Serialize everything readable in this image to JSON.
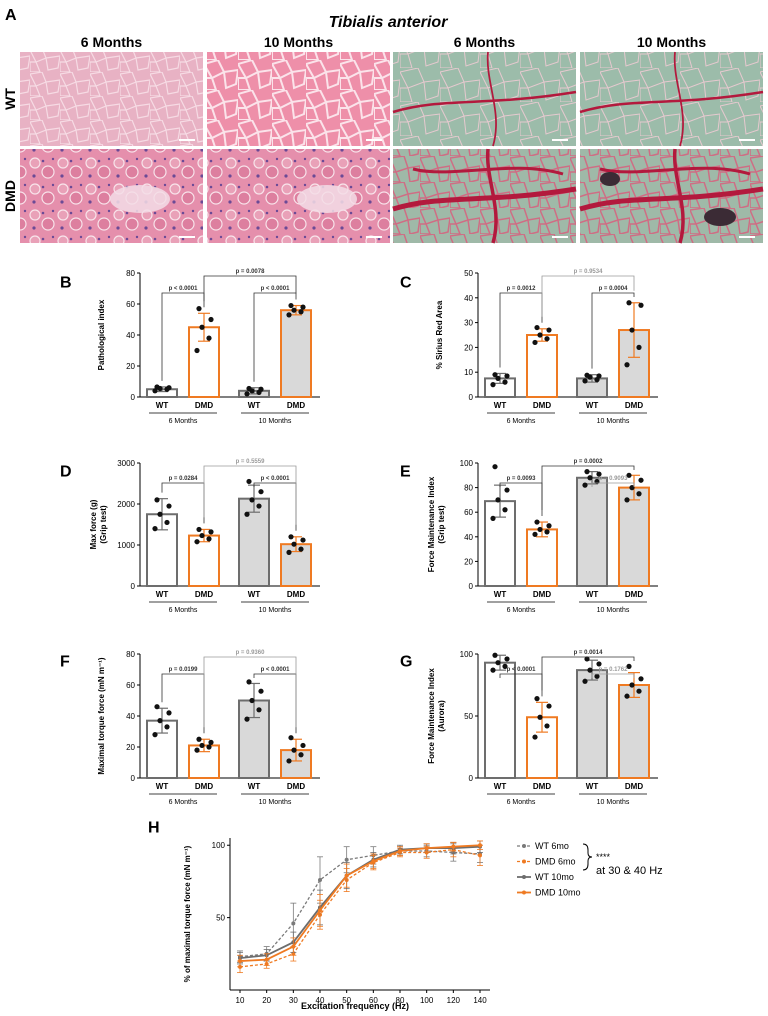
{
  "panel_a": {
    "letter": "A",
    "title": "Tibialis anterior",
    "columns": [
      "6 Months",
      "10 Months",
      "6 Months",
      "10 Months"
    ],
    "rows": [
      "WT",
      "DMD"
    ],
    "tiles": [
      {
        "row": "WT",
        "col": 0,
        "stain": "he",
        "tone": "light"
      },
      {
        "row": "WT",
        "col": 1,
        "stain": "he",
        "tone": "bright"
      },
      {
        "row": "WT",
        "col": 2,
        "stain": "sirius",
        "tone": "light"
      },
      {
        "row": "WT",
        "col": 3,
        "stain": "sirius",
        "tone": "mid"
      },
      {
        "row": "DMD",
        "col": 0,
        "stain": "he",
        "tone": "patho"
      },
      {
        "row": "DMD",
        "col": 1,
        "stain": "he",
        "tone": "patho"
      },
      {
        "row": "DMD",
        "col": 2,
        "stain": "sirius",
        "tone": "fibrotic"
      },
      {
        "row": "DMD",
        "col": 3,
        "stain": "sirius",
        "tone": "fibrotic-dark"
      }
    ],
    "colors": {
      "he_light": "#e7a9bd",
      "he_bright": "#ee8aa6",
      "sirius_green": "#8fb5a2",
      "sirius_red": "#b3193d"
    }
  },
  "colors": {
    "wt": "#6d6d6d",
    "dmd": "#ef7a22",
    "bar_fill_10mo": "#d9d9d9",
    "point": "#111111",
    "p_sig": "#333333",
    "p_ns": "#9a9a9a"
  },
  "chart_data": [
    {
      "id": "B",
      "type": "bar",
      "letter": "B",
      "ylabel": "Pathological index",
      "ylim": [
        0,
        80
      ],
      "yticks": [
        0,
        20,
        40,
        60,
        80
      ],
      "categories": [
        "WT",
        "DMD",
        "WT",
        "DMD"
      ],
      "groups": [
        "6 Months",
        "10  Months"
      ],
      "values": [
        5,
        45,
        4,
        56
      ],
      "errors": [
        1.5,
        9,
        2,
        3
      ],
      "points": [
        [
          4,
          5,
          5.5,
          6,
          6.5
        ],
        [
          30,
          38,
          45,
          50,
          57
        ],
        [
          2,
          3,
          4,
          5,
          5.5
        ],
        [
          53,
          55,
          56,
          58,
          59
        ]
      ],
      "comparisons": [
        {
          "a": 0,
          "b": 1,
          "label": "p < 0.0001",
          "sig": true,
          "level": 0
        },
        {
          "a": 2,
          "b": 3,
          "label": "p < 0.0001",
          "sig": true,
          "level": 0
        },
        {
          "a": 1,
          "b": 3,
          "label": "p = 0.0078",
          "sig": true,
          "level": 1
        }
      ]
    },
    {
      "id": "C",
      "type": "bar",
      "letter": "C",
      "ylabel": "% Sirius Red Area",
      "ylim": [
        0,
        50
      ],
      "yticks": [
        0,
        10,
        20,
        30,
        40,
        50
      ],
      "categories": [
        "WT",
        "DMD",
        "WT",
        "DMD"
      ],
      "groups": [
        "6 Months",
        "10  Months"
      ],
      "values": [
        7.5,
        25,
        7.5,
        27
      ],
      "errors": [
        2,
        2.5,
        1.5,
        11
      ],
      "points": [
        [
          5,
          6,
          7.5,
          8.5,
          9
        ],
        [
          22,
          23.5,
          25,
          27,
          28
        ],
        [
          6.5,
          7,
          8,
          8.5,
          8.8
        ],
        [
          13,
          20,
          27,
          37,
          38
        ]
      ],
      "comparisons": [
        {
          "a": 0,
          "b": 1,
          "label": "p = 0.0012",
          "sig": true,
          "level": 0
        },
        {
          "a": 2,
          "b": 3,
          "label": "p = 0.0004",
          "sig": true,
          "level": 0
        },
        {
          "a": 1,
          "b": 3,
          "label": "p = 0.9534",
          "sig": false,
          "level": 1
        }
      ]
    },
    {
      "id": "D",
      "type": "bar",
      "letter": "D",
      "ylabel": "Max force (g)",
      "ylabel2": "(Grip test)",
      "ylim": [
        0,
        3000
      ],
      "yticks": [
        0,
        1000,
        2000,
        3000
      ],
      "categories": [
        "WT",
        "DMD",
        "WT",
        "DMD"
      ],
      "groups": [
        "6 Months",
        "10  Months"
      ],
      "values": [
        1750,
        1230,
        2130,
        1020
      ],
      "errors": [
        380,
        150,
        330,
        180
      ],
      "points": [
        [
          1400,
          1550,
          1750,
          1950,
          2100
        ],
        [
          1080,
          1150,
          1230,
          1320,
          1380
        ],
        [
          1750,
          1950,
          2100,
          2300,
          2550
        ],
        [
          820,
          900,
          1020,
          1120,
          1200
        ]
      ],
      "comparisons": [
        {
          "a": 0,
          "b": 1,
          "label": "p = 0.0284",
          "sig": true,
          "level": 0
        },
        {
          "a": 2,
          "b": 3,
          "label": "p < 0.0001",
          "sig": true,
          "level": 0
        },
        {
          "a": 1,
          "b": 3,
          "label": "p = 0.5559",
          "sig": false,
          "level": 1
        }
      ]
    },
    {
      "id": "E",
      "type": "bar",
      "letter": "E",
      "ylabel": "Force Maintenance Index",
      "ylabel2": "(Grip test)",
      "ylim": [
        0,
        100
      ],
      "yticks": [
        0,
        20,
        40,
        60,
        80,
        100
      ],
      "categories": [
        "WT",
        "DMD",
        "WT",
        "DMD"
      ],
      "groups": [
        "6 Months",
        "10  Months"
      ],
      "values": [
        69,
        46,
        88,
        80
      ],
      "errors": [
        13,
        6,
        5,
        10
      ],
      "points": [
        [
          55,
          62,
          70,
          78,
          97
        ],
        [
          42,
          44,
          46,
          49,
          52
        ],
        [
          82,
          85,
          88,
          91,
          93
        ],
        [
          70,
          75,
          80,
          86,
          90
        ]
      ],
      "comparisons": [
        {
          "a": 0,
          "b": 1,
          "label": "p = 0.0093",
          "sig": true,
          "level": 0
        },
        {
          "a": 2,
          "b": 3,
          "label": "p = 0.9093",
          "sig": false,
          "level": 0
        },
        {
          "a": 1,
          "b": 3,
          "label": "p = 0.0002",
          "sig": true,
          "level": 1
        }
      ]
    },
    {
      "id": "F",
      "type": "bar",
      "letter": "F",
      "ylabel": "Maximal torque force (mN m⁻¹)",
      "ylim": [
        0,
        80
      ],
      "yticks": [
        0,
        20,
        40,
        60,
        80
      ],
      "categories": [
        "WT",
        "DMD",
        "WT",
        "DMD"
      ],
      "groups": [
        "6 Months",
        "10  Months"
      ],
      "values": [
        37,
        21,
        50,
        18
      ],
      "errors": [
        8,
        4,
        11,
        7
      ],
      "points": [
        [
          28,
          33,
          37,
          42,
          46
        ],
        [
          18,
          20,
          21,
          23,
          25
        ],
        [
          38,
          44,
          50,
          56,
          62
        ],
        [
          11,
          15,
          18,
          21,
          26
        ]
      ],
      "comparisons": [
        {
          "a": 0,
          "b": 1,
          "label": "p = 0.0199",
          "sig": true,
          "level": 0
        },
        {
          "a": 2,
          "b": 3,
          "label": "p < 0.0001",
          "sig": true,
          "level": 0
        },
        {
          "a": 1,
          "b": 3,
          "label": "p = 0.9360",
          "sig": false,
          "level": 1
        }
      ]
    },
    {
      "id": "G",
      "type": "bar",
      "letter": "G",
      "ylabel": "Force Maintenance Index",
      "ylabel2": "(Aurora)",
      "ylim": [
        0,
        100
      ],
      "yticks": [
        0,
        50,
        100
      ],
      "categories": [
        "WT",
        "DMD",
        "WT",
        "DMD"
      ],
      "groups": [
        "6 Months",
        "10  Months"
      ],
      "values": [
        93,
        49,
        87,
        75
      ],
      "errors": [
        6,
        12,
        8,
        10
      ],
      "points": [
        [
          87,
          90,
          93,
          96,
          99
        ],
        [
          33,
          42,
          49,
          58,
          64
        ],
        [
          78,
          82,
          87,
          92,
          96
        ],
        [
          66,
          70,
          75,
          80,
          90
        ]
      ],
      "comparisons": [
        {
          "a": 0,
          "b": 1,
          "label": "p < 0.0001",
          "sig": true,
          "level": 0
        },
        {
          "a": 2,
          "b": 3,
          "label": "p = 0.1762",
          "sig": false,
          "level": 0
        },
        {
          "a": 1,
          "b": 3,
          "label": "p = 0.0014",
          "sig": true,
          "level": 1
        }
      ]
    },
    {
      "id": "H",
      "type": "line",
      "letter": "H",
      "xlabel": "Excitation frequency (Hz)",
      "ylabel": "% of maximal torque force (mN m⁻¹)",
      "x": [
        10,
        20,
        30,
        40,
        50,
        60,
        80,
        100,
        120,
        140
      ],
      "ylim": [
        0,
        105
      ],
      "yticks": [
        50,
        100
      ],
      "series": [
        {
          "name": "WT 6mo",
          "color": "#7a7a7a",
          "dashed": true,
          "values": [
            23,
            25,
            46,
            76,
            90,
            93,
            96,
            96,
            95,
            94
          ],
          "errors": [
            4,
            5,
            14,
            16,
            9,
            6,
            3,
            4,
            6,
            6
          ]
        },
        {
          "name": "DMD 6mo",
          "color": "#ef7a22",
          "dashed": true,
          "values": [
            16,
            18,
            25,
            52,
            76,
            88,
            95,
            95,
            97,
            93
          ],
          "errors": [
            4,
            3,
            5,
            10,
            8,
            5,
            3,
            4,
            5,
            7
          ]
        },
        {
          "name": "WT 10mo",
          "color": "#6d6d6d",
          "dashed": false,
          "values": [
            22,
            24,
            33,
            57,
            79,
            90,
            97,
            98,
            98,
            99
          ],
          "errors": [
            4,
            4,
            7,
            12,
            9,
            5,
            3,
            3,
            4,
            4
          ]
        },
        {
          "name": "DMD 10mo",
          "color": "#ef7a22",
          "dashed": false,
          "values": [
            20,
            21,
            30,
            55,
            79,
            89,
            96,
            98,
            99,
            100
          ],
          "errors": [
            4,
            4,
            6,
            11,
            8,
            5,
            3,
            3,
            3,
            3
          ]
        }
      ],
      "annotation": {
        "stars": "****",
        "text": "at 30 & 40 Hz"
      }
    }
  ]
}
